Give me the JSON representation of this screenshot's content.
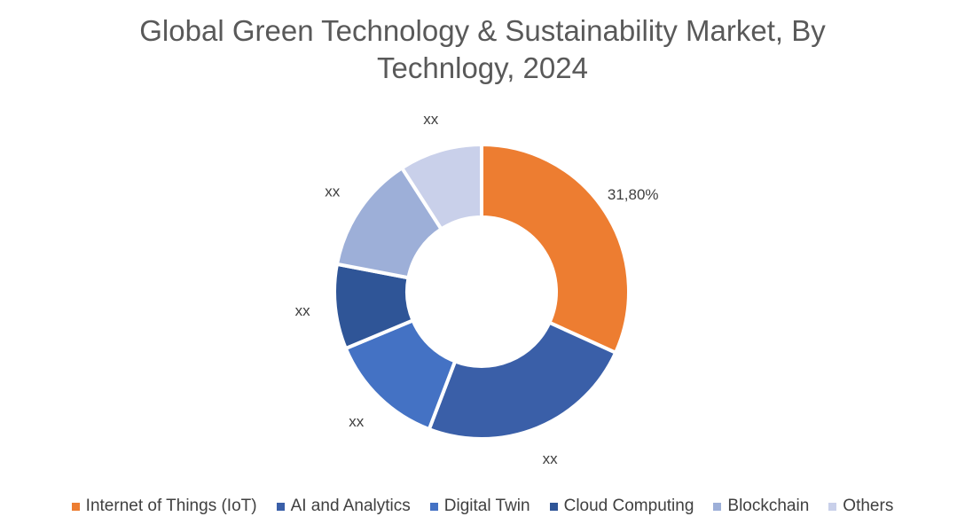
{
  "chart_data": {
    "type": "pie",
    "variant": "donut",
    "title": "Global Green Technology & Sustainability Market, By Technlogy, 2024",
    "title_lines": [
      "Global Green Technology & Sustainability Market, By",
      "Technlogy, 2024"
    ],
    "categories": [
      "Internet of Things (IoT)",
      "AI and Analytics",
      "Digital Twin",
      "Cloud Computing",
      "Blockchain",
      "Others"
    ],
    "values": [
      31.8,
      24.0,
      12.9,
      9.3,
      12.9,
      9.1
    ],
    "data_labels": [
      "31,80%",
      "xx",
      "xx",
      "xx",
      "xx",
      "xx"
    ],
    "colors": [
      "#ED7D31",
      "#3A5FA8",
      "#4472C4",
      "#2F5597",
      "#9DAFD8",
      "#C9D0EA"
    ],
    "legend_position": "bottom"
  }
}
